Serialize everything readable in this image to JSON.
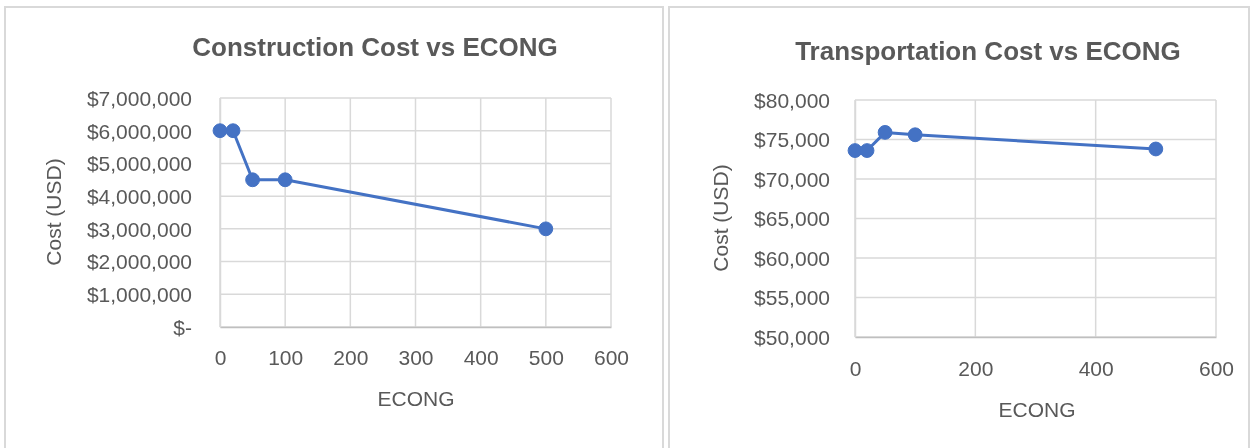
{
  "chart_data": [
    {
      "type": "line",
      "title": "Construction Cost vs ECONG",
      "xlabel": "ECONG",
      "ylabel": "Cost (USD)",
      "x": [
        0,
        20,
        50,
        100,
        500
      ],
      "values": [
        6000000,
        6000000,
        4500000,
        4500000,
        3000000
      ],
      "color": "#4472c4",
      "marker": "circle",
      "line_style": "solid",
      "grid": true,
      "xlim": [
        0,
        600
      ],
      "xticks": [
        0,
        100,
        200,
        300,
        400,
        500,
        600
      ],
      "ylim": [
        0,
        7000000
      ],
      "yticks": [
        {
          "value": 0,
          "label": "$-"
        },
        {
          "value": 1000000,
          "label": "$1,000,000"
        },
        {
          "value": 2000000,
          "label": "$2,000,000"
        },
        {
          "value": 3000000,
          "label": "$3,000,000"
        },
        {
          "value": 4000000,
          "label": "$4,000,000"
        },
        {
          "value": 5000000,
          "label": "$5,000,000"
        },
        {
          "value": 6000000,
          "label": "$6,000,000"
        },
        {
          "value": 7000000,
          "label": "$7,000,000"
        }
      ]
    },
    {
      "type": "line",
      "title": "Transportation Cost vs ECONG",
      "xlabel": "ECONG",
      "ylabel": "Cost (USD)",
      "x": [
        0,
        20,
        50,
        100,
        500
      ],
      "values": [
        73600,
        73600,
        75900,
        75600,
        73800
      ],
      "color": "#4472c4",
      "marker": "circle",
      "line_style": "solid",
      "grid": true,
      "xlim": [
        0,
        600
      ],
      "xticks": [
        0,
        200,
        400,
        600
      ],
      "ylim": [
        50000,
        80000
      ],
      "yticks": [
        {
          "value": 50000,
          "label": "$50,000"
        },
        {
          "value": 55000,
          "label": "$55,000"
        },
        {
          "value": 60000,
          "label": "$60,000"
        },
        {
          "value": 65000,
          "label": "$65,000"
        },
        {
          "value": 70000,
          "label": "$70,000"
        },
        {
          "value": 75000,
          "label": "$75,000"
        },
        {
          "value": 80000,
          "label": "$80,000"
        }
      ]
    }
  ]
}
